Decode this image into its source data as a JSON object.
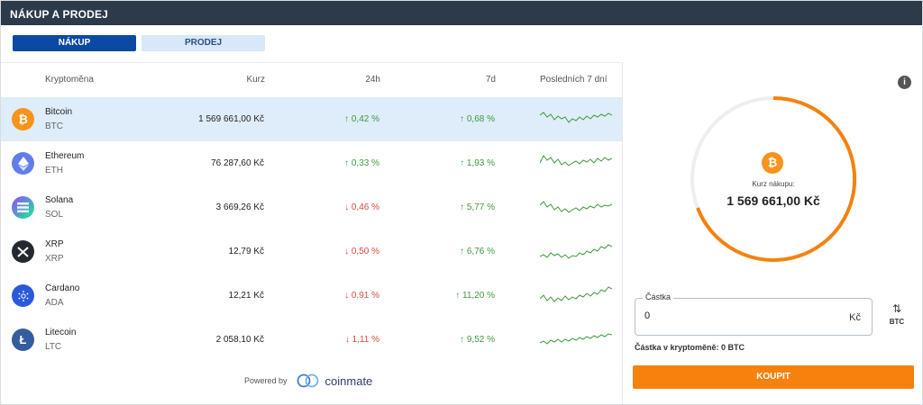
{
  "header": {
    "title": "NÁKUP A PRODEJ"
  },
  "tabs": {
    "buy": "NÁKUP",
    "sell": "PRODEJ"
  },
  "table": {
    "columns": {
      "name": "Kryptoměna",
      "rate": "Kurz",
      "change24h": "24h",
      "change7d": "7d",
      "sparkline": "Posledních 7 dní"
    },
    "rows": [
      {
        "name": "Bitcoin",
        "symbol": "BTC",
        "rate": "1 569 661,00 Kč",
        "change24h": "↑ 0,42 %",
        "change24h_dir": "up",
        "change7d": "↑ 0,68 %",
        "change7d_dir": "up",
        "icon": "bitcoin-icon",
        "color": "#f7931a"
      },
      {
        "name": "Ethereum",
        "symbol": "ETH",
        "rate": "76 287,60 Kč",
        "change24h": "↑ 0,33 %",
        "change24h_dir": "up",
        "change7d": "↑ 1,93 %",
        "change7d_dir": "up",
        "icon": "ethereum-icon",
        "color": "#627eea"
      },
      {
        "name": "Solana",
        "symbol": "SOL",
        "rate": "3 669,26 Kč",
        "change24h": "↓ 0,46 %",
        "change24h_dir": "down",
        "change7d": "↑ 5,77 %",
        "change7d_dir": "up",
        "icon": "solana-icon",
        "color": "#9945ff"
      },
      {
        "name": "XRP",
        "symbol": "XRP",
        "rate": "12,79 Kč",
        "change24h": "↓ 0,50 %",
        "change24h_dir": "down",
        "change7d": "↑ 6,76 %",
        "change7d_dir": "up",
        "icon": "xrp-icon",
        "color": "#23292f"
      },
      {
        "name": "Cardano",
        "symbol": "ADA",
        "rate": "12,21 Kč",
        "change24h": "↓ 0,91 %",
        "change24h_dir": "down",
        "change7d": "↑ 11,20 %",
        "change7d_dir": "up",
        "icon": "cardano-icon",
        "color": "#2a5ada"
      },
      {
        "name": "Litecoin",
        "symbol": "LTC",
        "rate": "2 058,10 Kč",
        "change24h": "↓ 1,11 %",
        "change24h_dir": "down",
        "change7d": "↑ 9,52 %",
        "change7d_dir": "up",
        "icon": "litecoin-icon",
        "color": "#345d9d"
      }
    ]
  },
  "powered": {
    "label": "Powered by",
    "brand": "coinmate"
  },
  "panel": {
    "rate_label": "Kurz nákupu:",
    "rate_value": "1 569 661,00 Kč",
    "amount_label": "Částka",
    "amount_value": "0",
    "amount_unit": "Kč",
    "swap_label": "BTC",
    "crypto_amount": "Částka v kryptoměně: 0 BTC",
    "buy_button": "KOUPIT"
  },
  "colors": {
    "header": "#2c3a4a",
    "accent": "#f5820d",
    "tab_active": "#0b4aa2",
    "up": "#3d9a3d",
    "down": "#d94a3a"
  }
}
